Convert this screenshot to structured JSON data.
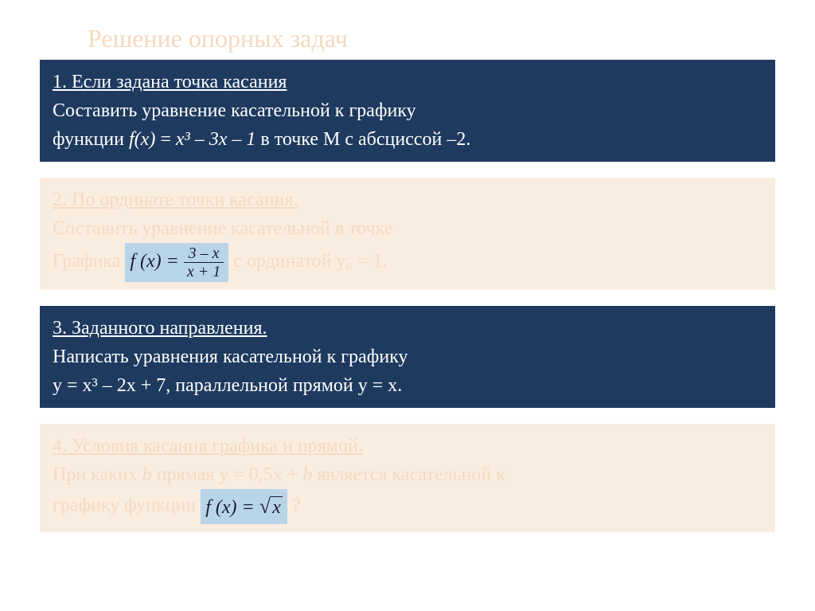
{
  "title": "Решение опорных задач",
  "boxes": [
    {
      "style": "dark",
      "heading": "1. Если задана точка касания",
      "line1": "Составить уравнение касательной к графику",
      "line2_prefix": "функции ",
      "line2_formula_italic": "f(x)",
      "line2_eq": " = ",
      "line2_formula": "x³ – 3x – 1",
      "line2_suffix": " в точке М с абсциссой –2."
    },
    {
      "style": "light",
      "heading": "2. По ординате точки касания.",
      "line1": "Составить уравнение касательной в точке",
      "line2_prefix": "Графика    ",
      "formula_fx": "f (x) = ",
      "frac_num": "3 – x",
      "frac_den": "x + 1",
      "line2_suffix": " с ординатой y₀  = 1."
    },
    {
      "style": "dark",
      "heading": "3. Заданного направления.",
      "line1": "Написать уравнения касательной к графику",
      "line2": " y = x³ – 2x + 7, параллельной прямой y = x."
    },
    {
      "style": "light",
      "heading": "4. Условия касания графика и прямой.",
      "line1_prefix": "При каких ",
      "line1_b": "b",
      "line1_mid": " прямая  y = 0,5x + ",
      "line1_b2": "b",
      "line1_suffix": " является касательной к",
      "line2_prefix": "графику функции ",
      "formula_fx": "f (x) = ",
      "sqrt_content": "x",
      "line2_suffix": "  ?"
    }
  ],
  "colors": {
    "dark_bg": "#1e3a5f",
    "light_bg": "#f9ede0",
    "title_color": "#f5d9c0",
    "highlight_bg": "#b8d4e8"
  }
}
